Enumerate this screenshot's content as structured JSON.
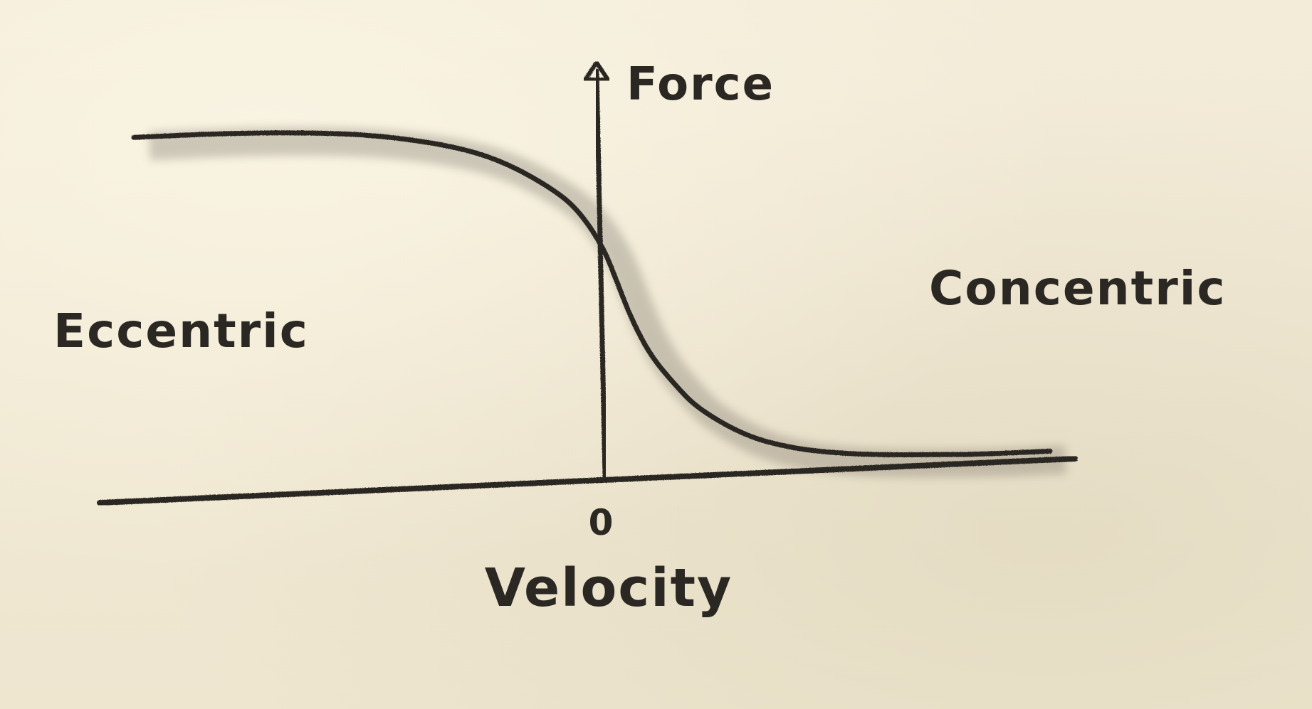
{
  "chart_data": {
    "type": "line",
    "xlabel": "Velocity",
    "ylabel": "Force",
    "x_tick_labels": [
      "0"
    ],
    "annotations": [
      "Eccentric",
      "Concentric"
    ],
    "series": [
      {
        "x": [
          -1.0,
          -0.8,
          -0.6,
          -0.45,
          -0.3,
          -0.2,
          -0.1,
          -0.05,
          0.0,
          0.03,
          0.06,
          0.1,
          0.15,
          0.2,
          0.3,
          0.4,
          0.5,
          0.6,
          0.7,
          0.8,
          0.95
        ],
        "y": [
          0.98,
          0.98,
          0.97,
          0.95,
          0.91,
          0.86,
          0.78,
          0.72,
          0.62,
          0.52,
          0.42,
          0.32,
          0.24,
          0.17,
          0.09,
          0.05,
          0.03,
          0.02,
          0.015,
          0.01,
          0.01
        ]
      }
    ],
    "xlim": [
      -1.0,
      1.0
    ],
    "ylim": [
      0,
      1.3
    ],
    "grid": false,
    "colors": {
      "ink": "#2b2723",
      "smudge": "#7d776c"
    }
  }
}
